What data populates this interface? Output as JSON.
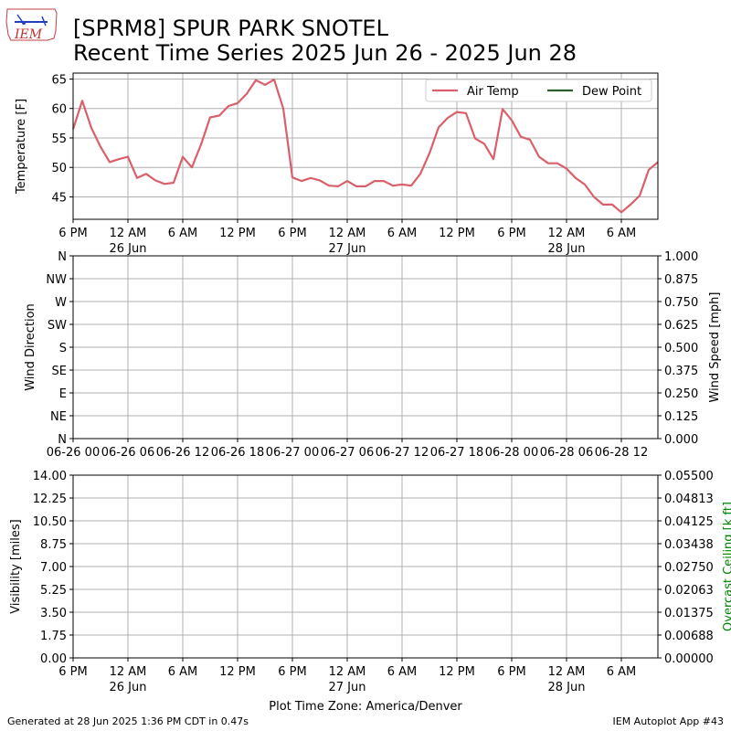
{
  "header": {
    "title": "[SPRM8] SPUR PARK SNOTEL",
    "subtitle": "Recent Time Series 2025 Jun 26 - 2025 Jun 28",
    "logo_text": "IEM"
  },
  "footer": {
    "generated": "Generated at 28 Jun 2025 1:36 PM CDT in 0.47s",
    "app": "IEM Autoplot App #43",
    "timezone": "Plot Time Zone: America/Denver"
  },
  "colors": {
    "air_temp": "#d9606a",
    "dew_point": "#2e5e2e",
    "grid": "#b0b0b0",
    "ceiling_label": "#008000"
  },
  "chart_data": [
    {
      "type": "line",
      "ylabel": "Temperature [F]",
      "ylim": [
        41.2,
        66
      ],
      "yticks": [
        45,
        50,
        55,
        60,
        65
      ],
      "x_range_hours": [
        0,
        64
      ],
      "xticks": [
        {
          "h": 0,
          "label": "6 PM",
          "sub": ""
        },
        {
          "h": 6,
          "label": "12 AM",
          "sub": "26 Jun"
        },
        {
          "h": 12,
          "label": "6 AM",
          "sub": ""
        },
        {
          "h": 18,
          "label": "12 PM",
          "sub": ""
        },
        {
          "h": 24,
          "label": "6 PM",
          "sub": ""
        },
        {
          "h": 30,
          "label": "12 AM",
          "sub": "27 Jun"
        },
        {
          "h": 36,
          "label": "6 AM",
          "sub": ""
        },
        {
          "h": 42,
          "label": "12 PM",
          "sub": ""
        },
        {
          "h": 48,
          "label": "6 PM",
          "sub": ""
        },
        {
          "h": 54,
          "label": "12 AM",
          "sub": "28 Jun"
        },
        {
          "h": 60,
          "label": "6 AM",
          "sub": ""
        }
      ],
      "grid": true,
      "legend_position": "top-right",
      "series": [
        {
          "name": "Air Temp",
          "x": [
            0,
            1,
            2,
            3,
            4,
            5,
            6,
            7,
            8,
            9,
            10,
            11,
            12,
            13,
            14,
            15,
            16,
            17,
            18,
            19,
            20,
            21,
            22,
            23,
            24,
            25,
            26,
            27,
            28,
            29,
            30,
            31,
            32,
            33,
            34,
            35,
            36,
            37,
            38,
            39,
            40,
            41,
            42,
            43,
            44,
            45,
            46,
            47,
            48,
            49,
            50,
            51,
            52,
            53,
            54,
            55,
            56,
            57,
            58,
            59,
            60,
            61,
            62,
            63,
            64
          ],
          "y": [
            56.5,
            61.3,
            56.7,
            53.5,
            50.9,
            51.4,
            51.8,
            48.2,
            48.9,
            47.8,
            47.2,
            47.4,
            51.8,
            50.0,
            53.9,
            58.5,
            58.8,
            60.4,
            60.9,
            62.5,
            64.8,
            64.0,
            64.9,
            60.0,
            48.3,
            47.7,
            48.2,
            47.8,
            46.9,
            46.8,
            47.7,
            46.8,
            46.8,
            47.7,
            47.7,
            46.9,
            47.1,
            46.9,
            48.9,
            52.4,
            56.8,
            58.4,
            59.4,
            59.2,
            54.9,
            54.0,
            51.4,
            59.9,
            58.0,
            55.2,
            54.7,
            51.8,
            50.7,
            50.7,
            49.8,
            48.2,
            47.1,
            45.0,
            43.7,
            43.7,
            42.4,
            43.7,
            45.2,
            49.6,
            50.9
          ]
        },
        {
          "name": "Dew Point",
          "x": [],
          "y": []
        }
      ]
    },
    {
      "type": "scatter",
      "ylabel": "Wind Direction",
      "y2label": "Wind Speed [mph]",
      "yticks_left": [
        "N",
        "NE",
        "E",
        "SE",
        "S",
        "SW",
        "W",
        "NW",
        "N"
      ],
      "yticks_right": [
        "0.000",
        "0.125",
        "0.250",
        "0.375",
        "0.500",
        "0.625",
        "0.750",
        "0.875",
        "1.000"
      ],
      "xticks": [
        "06-26 00",
        "06-26 06",
        "06-26 12",
        "06-26 18",
        "06-27 00",
        "06-27 06",
        "06-27 12",
        "06-27 18",
        "06-28 00",
        "06-28 06",
        "06-28 12"
      ],
      "grid": true,
      "series": []
    },
    {
      "type": "line",
      "ylabel": "Visibility [miles]",
      "y2label": "Overcast Ceiling [k ft]",
      "yticks_left": [
        "0.00",
        "1.75",
        "3.50",
        "5.25",
        "7.00",
        "8.75",
        "10.50",
        "12.25",
        "14.00"
      ],
      "yticks_right": [
        "0.00000",
        "0.00688",
        "0.01375",
        "0.02063",
        "0.02750",
        "0.03438",
        "0.04125",
        "0.04813",
        "0.05500"
      ],
      "xlabel": "Plot Time Zone: America/Denver",
      "grid": true,
      "series": []
    }
  ]
}
